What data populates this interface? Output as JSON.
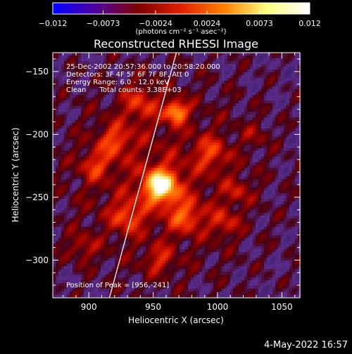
{
  "chart_data": {
    "type": "heatmap",
    "title": "Reconstructed RHESSI Image",
    "xlabel": "Heliocentric X (arcsec)",
    "ylabel": "Heliocentric Y (arcsec)",
    "xlim": [
      872,
      1064
    ],
    "ylim": [
      -330,
      -135
    ],
    "x_ticks": [
      900,
      950,
      1000,
      1050
    ],
    "x_tick_labels": [
      "900",
      "950",
      "1000",
      "1050"
    ],
    "y_ticks": [
      -150,
      -200,
      -250,
      -300
    ],
    "y_tick_labels": [
      "−150",
      "−200",
      "−250",
      "−300"
    ],
    "colorbar": {
      "min": -0.012,
      "max": 0.012,
      "ticks": [
        -0.012,
        -0.0073,
        -0.0024,
        0.0024,
        0.0073,
        0.012
      ],
      "tick_labels": [
        "−0.012",
        "−0.0073",
        "−0.0024",
        "0.0024",
        "0.0073",
        "0.012"
      ],
      "unit_label": "(photons cm⁻² s⁻¹ asec⁻²)",
      "colors": [
        "#0000ff",
        "#5000a0",
        "#800000",
        "#e02000",
        "#ff8000",
        "#ffff80",
        "#ffffff"
      ]
    },
    "annotations": [
      "25-Dec-2002 20:57:36.000 to 20:58:20.000",
      "Detectors: 3F 4F 5F 6F 7F 8F, Att 0",
      "Energy Range: 6.0 - 12.0 keV",
      "Clean      Total counts: 3.38E+03"
    ],
    "peak_label": "Position of Peak = [956,-241]",
    "peak": {
      "x": 956,
      "y": -241
    },
    "limb_line": [
      {
        "x": 916,
        "y": -330
      },
      {
        "x": 968,
        "y": -135
      }
    ],
    "bright_sources": [
      {
        "x": 956,
        "y": -241,
        "amp": 0.012,
        "sigma": 9
      },
      {
        "x": 968,
        "y": -182,
        "amp": 0.0085,
        "sigma": 6
      },
      {
        "x": 940,
        "y": -175,
        "amp": 0.004,
        "sigma": 10
      },
      {
        "x": 920,
        "y": -205,
        "amp": 0.0045,
        "sigma": 9
      },
      {
        "x": 905,
        "y": -225,
        "amp": 0.004,
        "sigma": 8
      },
      {
        "x": 930,
        "y": -265,
        "amp": 0.0045,
        "sigma": 9
      },
      {
        "x": 975,
        "y": -265,
        "amp": 0.005,
        "sigma": 9
      },
      {
        "x": 1005,
        "y": -270,
        "amp": 0.0035,
        "sigma": 8
      },
      {
        "x": 995,
        "y": -215,
        "amp": 0.004,
        "sigma": 9
      },
      {
        "x": 1015,
        "y": -245,
        "amp": 0.003,
        "sigma": 7
      },
      {
        "x": 895,
        "y": -290,
        "amp": 0.003,
        "sigma": 8
      },
      {
        "x": 955,
        "y": -300,
        "amp": 0.0035,
        "sigma": 8
      },
      {
        "x": 1030,
        "y": -200,
        "amp": 0.002,
        "sigma": 7
      }
    ]
  },
  "footer": {
    "date_label": "4-May-2022 16:57"
  }
}
